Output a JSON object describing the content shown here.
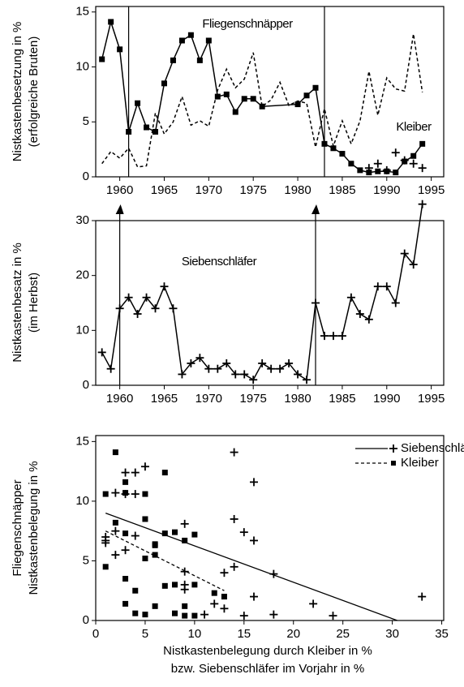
{
  "chart_data": [
    {
      "type": "line",
      "ylabel": [
        "Nistkastenbesetzung in %",
        "(erfolgreiche Bruten)"
      ],
      "annotations": [
        "Fliegenschnäpper",
        "Kleiber"
      ],
      "xlim": [
        1957.3,
        1996.4
      ],
      "xticks": [
        1960,
        1965,
        1970,
        1975,
        1980,
        1985,
        1990,
        1995
      ],
      "ylim": [
        0,
        15.5
      ],
      "yticks": [
        0,
        5,
        10,
        15
      ],
      "vlines": [
        1961,
        1983
      ],
      "series": [
        {
          "name": "Fliegenschnäpper",
          "color": "#000000",
          "marker": "square",
          "line": true,
          "dash": false,
          "x": [
            1958,
            1959,
            1960,
            1961,
            1962,
            1963,
            1964,
            1965,
            1966,
            1967,
            1968,
            1969,
            1970,
            1971,
            1972,
            1973,
            1974,
            1975,
            1976,
            1980,
            1981,
            1982,
            1983,
            1984,
            1985,
            1986,
            1987,
            1988,
            1989,
            1990,
            1991,
            1992,
            1993,
            1994
          ],
          "values": [
            10.7,
            14.1,
            11.6,
            4.1,
            6.7,
            4.5,
            4.1,
            8.5,
            10.6,
            12.4,
            12.9,
            10.6,
            12.4,
            7.3,
            7.5,
            5.9,
            7.1,
            7.1,
            6.4,
            6.6,
            7.4,
            8.1,
            3.0,
            2.6,
            2.1,
            1.2,
            0.6,
            0.4,
            0.5,
            0.5,
            0.4,
            1.4,
            1.9,
            3.0
          ]
        },
        {
          "name": "Kleiber",
          "color": "#000000",
          "marker": "none",
          "line": true,
          "dash": true,
          "x": [
            1958,
            1959,
            1960,
            1961,
            1962,
            1963,
            1964,
            1965,
            1966,
            1967,
            1968,
            1969,
            1970,
            1971,
            1972,
            1973,
            1974,
            1975,
            1976,
            1977,
            1978,
            1979,
            1980,
            1981,
            1982,
            1983,
            1984,
            1985,
            1986,
            1987,
            1988,
            1989,
            1990,
            1991,
            1992,
            1993,
            1994
          ],
          "values": [
            1.2,
            2.3,
            1.7,
            2.6,
            0.9,
            1.0,
            5.8,
            3.9,
            5.0,
            7.3,
            4.7,
            5.1,
            4.6,
            7.9,
            9.8,
            8.1,
            8.9,
            11.3,
            6.4,
            7.0,
            8.6,
            6.5,
            6.9,
            6.7,
            2.7,
            6.2,
            2.8,
            5.1,
            3.0,
            5.1,
            9.6,
            5.6,
            9.0,
            8.0,
            7.8,
            13.0,
            7.7
          ]
        },
        {
          "color": "#000000",
          "marker": "plus",
          "line": false,
          "dash": false,
          "x": [
            1988,
            1989,
            1990,
            1991,
            1992,
            1993,
            1994
          ],
          "values": [
            0.8,
            1.2,
            0.6,
            2.2,
            1.5,
            1.2,
            0.8
          ]
        }
      ]
    },
    {
      "type": "line",
      "ylabel": [
        "Nistkastenbesatz in %",
        "(im Herbst)"
      ],
      "annotations": [
        "Siebenschläfer"
      ],
      "xlim": [
        1957.3,
        1996.4
      ],
      "xticks": [
        1960,
        1965,
        1970,
        1975,
        1980,
        1985,
        1990,
        1995
      ],
      "ylim": [
        0,
        30
      ],
      "yticks": [
        0,
        10,
        20,
        30
      ],
      "vlines": [
        1960,
        1982
      ],
      "series": [
        {
          "name": "Siebenschläfer",
          "color": "#000000",
          "marker": "plus",
          "line": true,
          "dash": false,
          "x": [
            1958,
            1959,
            1960,
            1961,
            1962,
            1963,
            1964,
            1965,
            1966,
            1967,
            1968,
            1969,
            1970,
            1971,
            1972,
            1973,
            1974,
            1975,
            1976,
            1977,
            1978,
            1979,
            1980,
            1981,
            1982,
            1983,
            1984,
            1985,
            1986,
            1987,
            1988,
            1989,
            1990,
            1991,
            1992,
            1993,
            1994
          ],
          "values": [
            6,
            3,
            14,
            16,
            13,
            16,
            14,
            18,
            14,
            2,
            4,
            5,
            3,
            3,
            4,
            2,
            2,
            1,
            4,
            3,
            3,
            4,
            2,
            1,
            15,
            9,
            9,
            9,
            16,
            13,
            12,
            18,
            18,
            15,
            24,
            22,
            33
          ]
        }
      ]
    },
    {
      "type": "scatter",
      "ylabel": [
        "Fliegenschnäpper",
        "Nistkastenbelegung in %"
      ],
      "xlabel": [
        "Nistkastenbelegung durch Kleiber in %",
        "bzw. Siebenschläfer im Vorjahr in %"
      ],
      "xlim": [
        0,
        35.2
      ],
      "xticks": [
        0,
        5,
        10,
        15,
        20,
        25,
        30,
        35
      ],
      "ylim": [
        0,
        15.5
      ],
      "yticks": [
        0,
        5,
        10,
        15
      ],
      "series": [
        {
          "name": "Siebenschläfer",
          "color": "#000000",
          "marker": "plus",
          "dash": false,
          "x": [
            14,
            16,
            5,
            4,
            3,
            2,
            3,
            4,
            9,
            14,
            15,
            16,
            1,
            1,
            2,
            4,
            3,
            2,
            1,
            9,
            9,
            13,
            14,
            12,
            13,
            16,
            18,
            18,
            22,
            24,
            33,
            15,
            9,
            11
          ],
          "values": [
            14.1,
            11.6,
            12.9,
            12.4,
            12.4,
            10.7,
            10.6,
            10.6,
            8.1,
            8.5,
            7.4,
            6.7,
            7.0,
            6.5,
            7.5,
            7.1,
            5.9,
            5.5,
            6.7,
            4.1,
            3.0,
            4.0,
            4.5,
            1.4,
            1.0,
            2.0,
            3.9,
            0.5,
            1.4,
            0.4,
            2.0,
            0.4,
            2.6,
            0.5
          ]
        },
        {
          "name": "Kleiber",
          "color": "#000000",
          "marker": "square",
          "dash": true,
          "x": [
            2,
            3,
            5,
            7,
            1,
            3,
            5,
            2,
            3,
            7,
            8,
            10,
            6,
            9,
            6,
            1,
            5,
            3,
            4,
            7,
            6,
            8,
            10,
            12,
            9,
            4,
            5,
            8,
            9,
            10,
            13,
            3,
            6
          ],
          "values": [
            14.1,
            11.6,
            10.6,
            12.4,
            10.6,
            10.7,
            8.5,
            8.2,
            7.3,
            7.3,
            7.4,
            7.2,
            6.4,
            6.7,
            6.3,
            4.5,
            5.2,
            3.5,
            2.5,
            2.9,
            1.2,
            3.0,
            3.0,
            2.3,
            1.2,
            0.6,
            0.5,
            0.6,
            0.4,
            0.4,
            2.0,
            1.4,
            5.5
          ]
        }
      ],
      "trendlines": [
        {
          "x": [
            1,
            30.5
          ],
          "y": [
            9,
            0
          ],
          "dash": false
        },
        {
          "x": [
            1,
            13
          ],
          "y": [
            7.5,
            2.5
          ],
          "dash": true
        }
      ]
    }
  ]
}
